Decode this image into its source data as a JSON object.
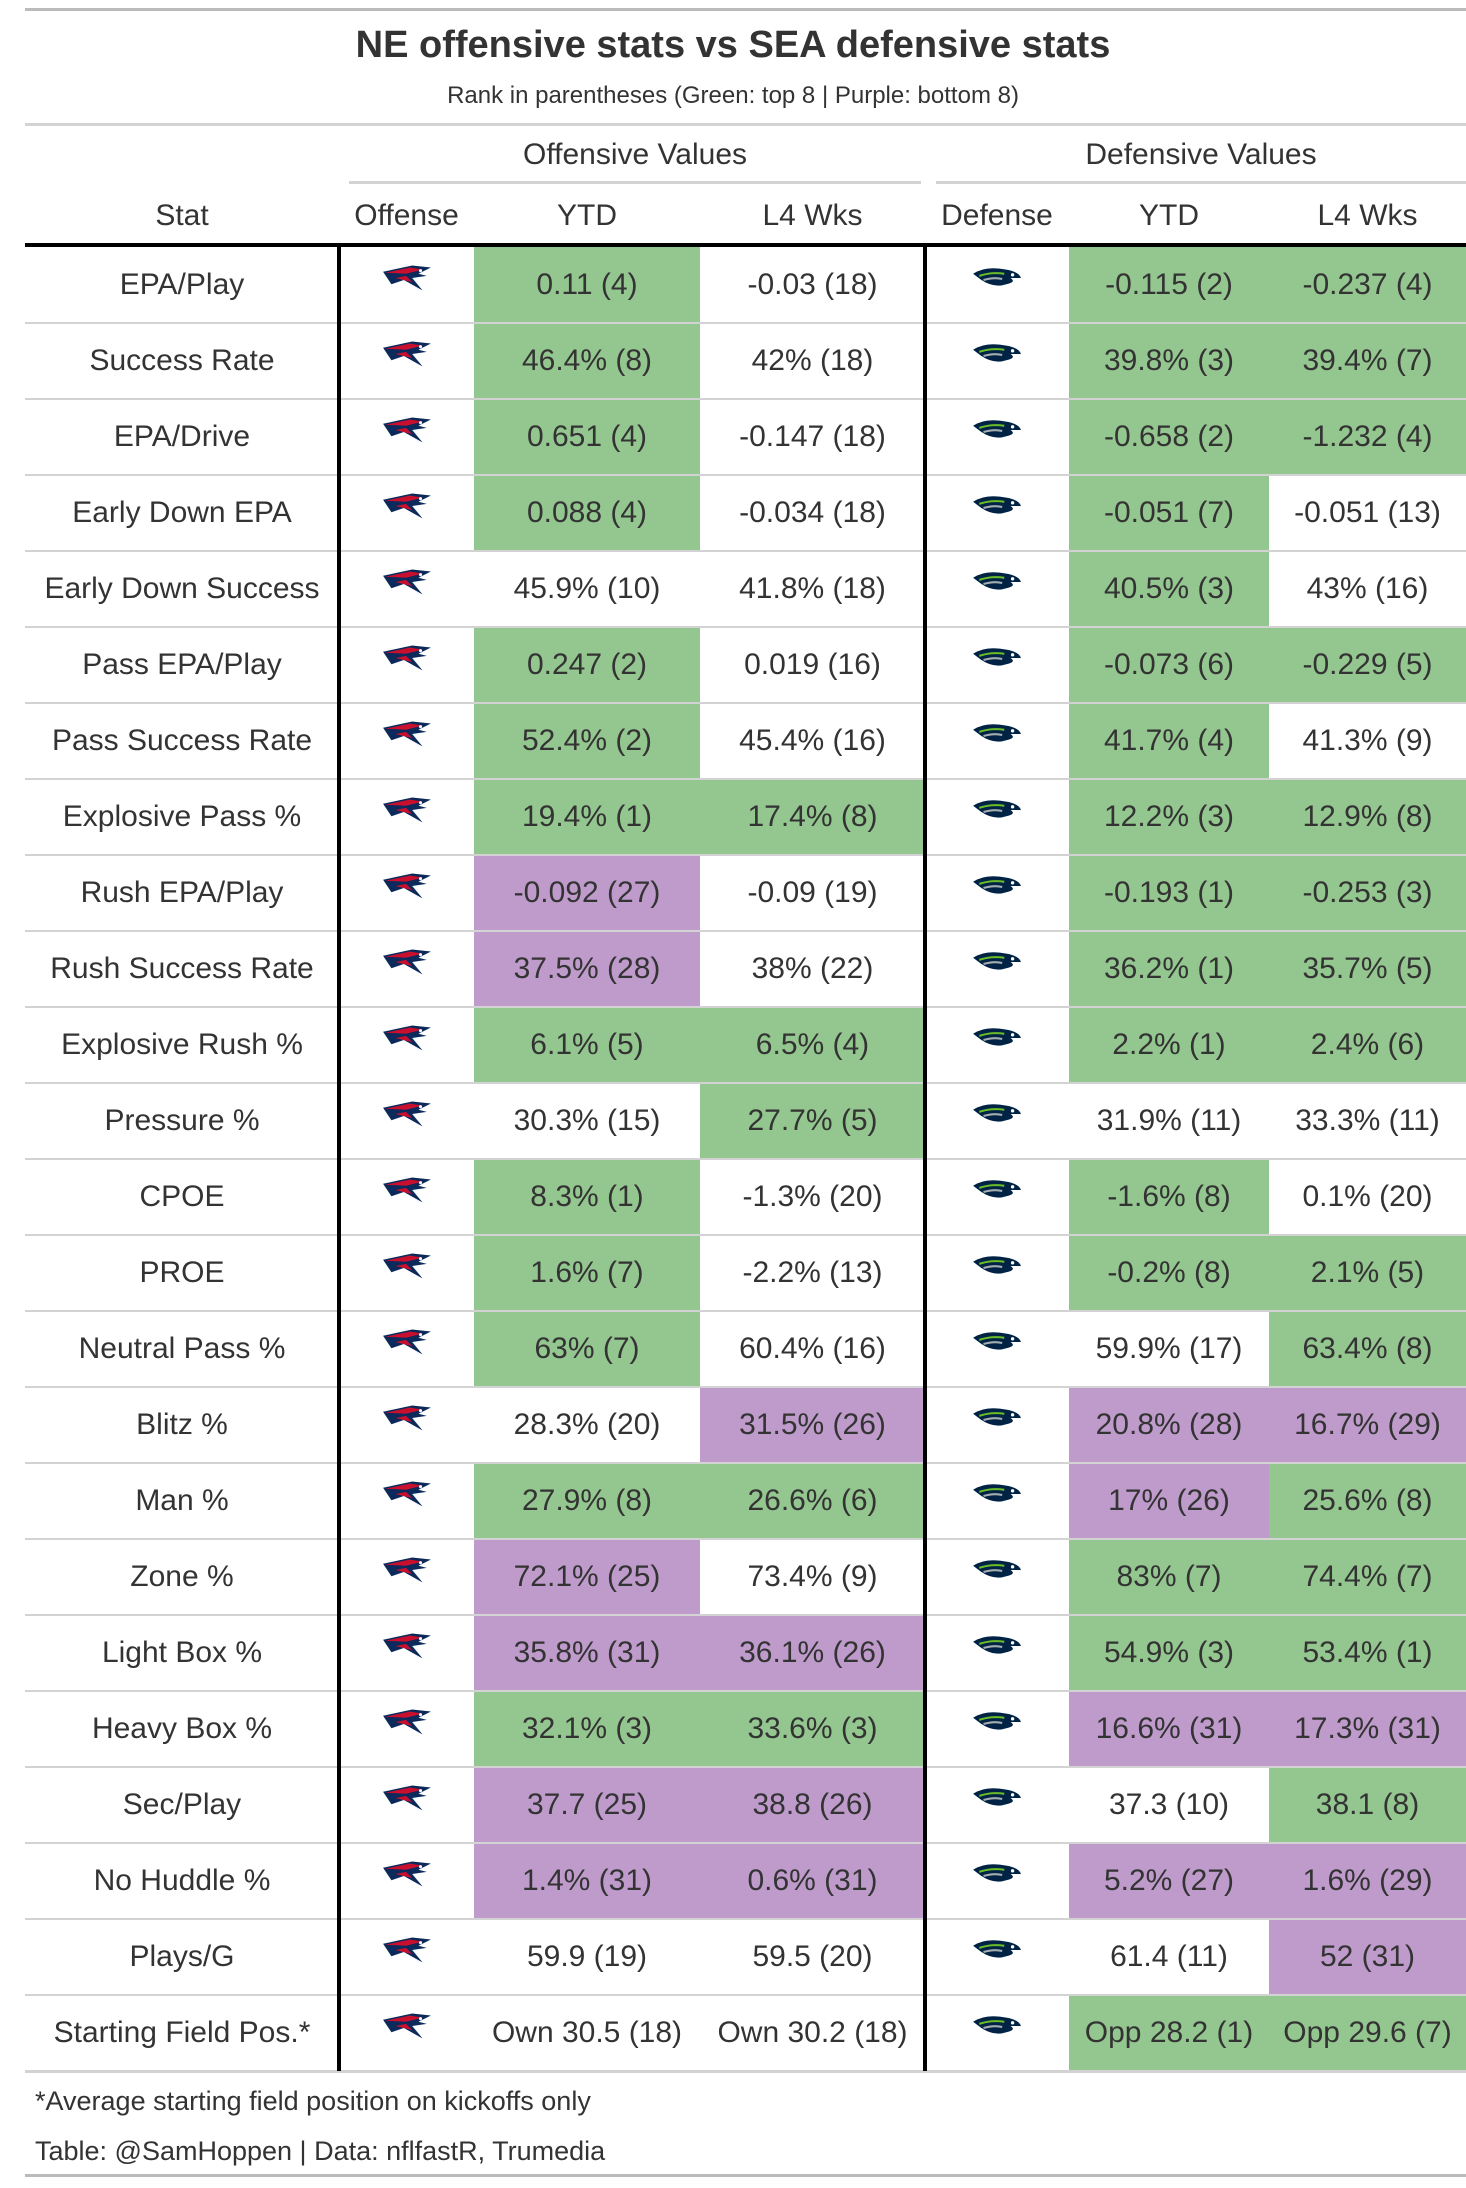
{
  "header": {
    "title": "NE offensive stats vs SEA defensive stats",
    "subtitle": "Rank in parentheses (Green: top 8 | Purple: bottom 8)"
  },
  "spanners": [
    "Offensive Values",
    "Defensive Values"
  ],
  "columns": [
    "Stat",
    "Offense",
    "YTD",
    "L4 Wks",
    "Defense",
    "YTD",
    "L4 Wks"
  ],
  "table": {
    "rows": [
      {
        "stat": "EPA/Play",
        "values": [
          "0.11 (4)",
          "-0.03 (18)",
          "-0.115 (2)",
          "-0.237 (4)"
        ],
        "colors": [
          "#94c68f",
          "#ffffff",
          "#94c68f",
          "#94c68f"
        ]
      },
      {
        "stat": "Success Rate",
        "values": [
          "46.4% (8)",
          "42% (18)",
          "39.8% (3)",
          "39.4% (7)"
        ],
        "colors": [
          "#94c68f",
          "#ffffff",
          "#94c68f",
          "#94c68f"
        ]
      },
      {
        "stat": "EPA/Drive",
        "values": [
          "0.651 (4)",
          "-0.147 (18)",
          "-0.658 (2)",
          "-1.232 (4)"
        ],
        "colors": [
          "#94c68f",
          "#ffffff",
          "#94c68f",
          "#94c68f"
        ]
      },
      {
        "stat": "Early Down EPA",
        "values": [
          "0.088 (4)",
          "-0.034 (18)",
          "-0.051 (7)",
          "-0.051 (13)"
        ],
        "colors": [
          "#94c68f",
          "#ffffff",
          "#94c68f",
          "#ffffff"
        ]
      },
      {
        "stat": "Early Down Success",
        "values": [
          "45.9% (10)",
          "41.8% (18)",
          "40.5% (3)",
          "43% (16)"
        ],
        "colors": [
          "#ffffff",
          "#ffffff",
          "#94c68f",
          "#ffffff"
        ]
      },
      {
        "stat": "Pass EPA/Play",
        "values": [
          "0.247 (2)",
          "0.019 (16)",
          "-0.073 (6)",
          "-0.229 (5)"
        ],
        "colors": [
          "#94c68f",
          "#ffffff",
          "#94c68f",
          "#94c68f"
        ]
      },
      {
        "stat": "Pass Success Rate",
        "values": [
          "52.4% (2)",
          "45.4% (16)",
          "41.7% (4)",
          "41.3% (9)"
        ],
        "colors": [
          "#94c68f",
          "#ffffff",
          "#94c68f",
          "#ffffff"
        ]
      },
      {
        "stat": "Explosive Pass %",
        "values": [
          "19.4% (1)",
          "17.4% (8)",
          "12.2% (3)",
          "12.9% (8)"
        ],
        "colors": [
          "#94c68f",
          "#94c68f",
          "#94c68f",
          "#94c68f"
        ]
      },
      {
        "stat": "Rush EPA/Play",
        "values": [
          "-0.092 (27)",
          "-0.09 (19)",
          "-0.193 (1)",
          "-0.253 (3)"
        ],
        "colors": [
          "#bf9bcc",
          "#ffffff",
          "#94c68f",
          "#94c68f"
        ]
      },
      {
        "stat": "Rush Success Rate",
        "values": [
          "37.5% (28)",
          "38% (22)",
          "36.2% (1)",
          "35.7% (5)"
        ],
        "colors": [
          "#bf9bcc",
          "#ffffff",
          "#94c68f",
          "#94c68f"
        ]
      },
      {
        "stat": "Explosive Rush %",
        "values": [
          "6.1% (5)",
          "6.5% (4)",
          "2.2% (1)",
          "2.4% (6)"
        ],
        "colors": [
          "#94c68f",
          "#94c68f",
          "#94c68f",
          "#94c68f"
        ]
      },
      {
        "stat": "Pressure %",
        "values": [
          "30.3% (15)",
          "27.7% (5)",
          "31.9% (11)",
          "33.3% (11)"
        ],
        "colors": [
          "#ffffff",
          "#94c68f",
          "#ffffff",
          "#ffffff"
        ]
      },
      {
        "stat": "CPOE",
        "values": [
          "8.3% (1)",
          "-1.3% (20)",
          "-1.6% (8)",
          "0.1% (20)"
        ],
        "colors": [
          "#94c68f",
          "#ffffff",
          "#94c68f",
          "#ffffff"
        ]
      },
      {
        "stat": "PROE",
        "values": [
          "1.6% (7)",
          "-2.2% (13)",
          "-0.2% (8)",
          "2.1% (5)"
        ],
        "colors": [
          "#94c68f",
          "#ffffff",
          "#94c68f",
          "#94c68f"
        ]
      },
      {
        "stat": "Neutral Pass %",
        "values": [
          "63% (7)",
          "60.4% (16)",
          "59.9% (17)",
          "63.4% (8)"
        ],
        "colors": [
          "#94c68f",
          "#ffffff",
          "#ffffff",
          "#94c68f"
        ]
      },
      {
        "stat": "Blitz %",
        "values": [
          "28.3% (20)",
          "31.5% (26)",
          "20.8% (28)",
          "16.7% (29)"
        ],
        "colors": [
          "#ffffff",
          "#bf9bcc",
          "#bf9bcc",
          "#bf9bcc"
        ]
      },
      {
        "stat": "Man %",
        "values": [
          "27.9% (8)",
          "26.6% (6)",
          "17% (26)",
          "25.6% (8)"
        ],
        "colors": [
          "#94c68f",
          "#94c68f",
          "#bf9bcc",
          "#94c68f"
        ]
      },
      {
        "stat": "Zone %",
        "values": [
          "72.1% (25)",
          "73.4% (9)",
          "83% (7)",
          "74.4% (7)"
        ],
        "colors": [
          "#bf9bcc",
          "#ffffff",
          "#94c68f",
          "#94c68f"
        ]
      },
      {
        "stat": "Light Box %",
        "values": [
          "35.8% (31)",
          "36.1% (26)",
          "54.9% (3)",
          "53.4% (1)"
        ],
        "colors": [
          "#bf9bcc",
          "#bf9bcc",
          "#94c68f",
          "#94c68f"
        ]
      },
      {
        "stat": "Heavy Box %",
        "values": [
          "32.1% (3)",
          "33.6% (3)",
          "16.6% (31)",
          "17.3% (31)"
        ],
        "colors": [
          "#94c68f",
          "#94c68f",
          "#bf9bcc",
          "#bf9bcc"
        ]
      },
      {
        "stat": "Sec/Play",
        "values": [
          "37.7 (25)",
          "38.8 (26)",
          "37.3 (10)",
          "38.1 (8)"
        ],
        "colors": [
          "#bf9bcc",
          "#bf9bcc",
          "#ffffff",
          "#94c68f"
        ]
      },
      {
        "stat": "No Huddle %",
        "values": [
          "1.4% (31)",
          "0.6% (31)",
          "5.2% (27)",
          "1.6% (29)"
        ],
        "colors": [
          "#bf9bcc",
          "#bf9bcc",
          "#bf9bcc",
          "#bf9bcc"
        ]
      },
      {
        "stat": "Plays/G",
        "values": [
          "59.9 (19)",
          "59.5 (20)",
          "61.4 (11)",
          "52 (31)"
        ],
        "colors": [
          "#ffffff",
          "#ffffff",
          "#ffffff",
          "#bf9bcc"
        ]
      },
      {
        "stat": "Starting Field Pos.*",
        "values": [
          "Own 30.5 (18)",
          "Own 30.2 (18)",
          "Opp 28.2 (1)",
          "Opp 29.6 (7)"
        ],
        "colors": [
          "#ffffff",
          "#ffffff",
          "#94c68f",
          "#94c68f"
        ]
      }
    ]
  },
  "footnotes": [
    "*Average starting field position on kickoffs only",
    "Table: @SamHoppen | Data: nflfastR, Trumedia"
  ]
}
